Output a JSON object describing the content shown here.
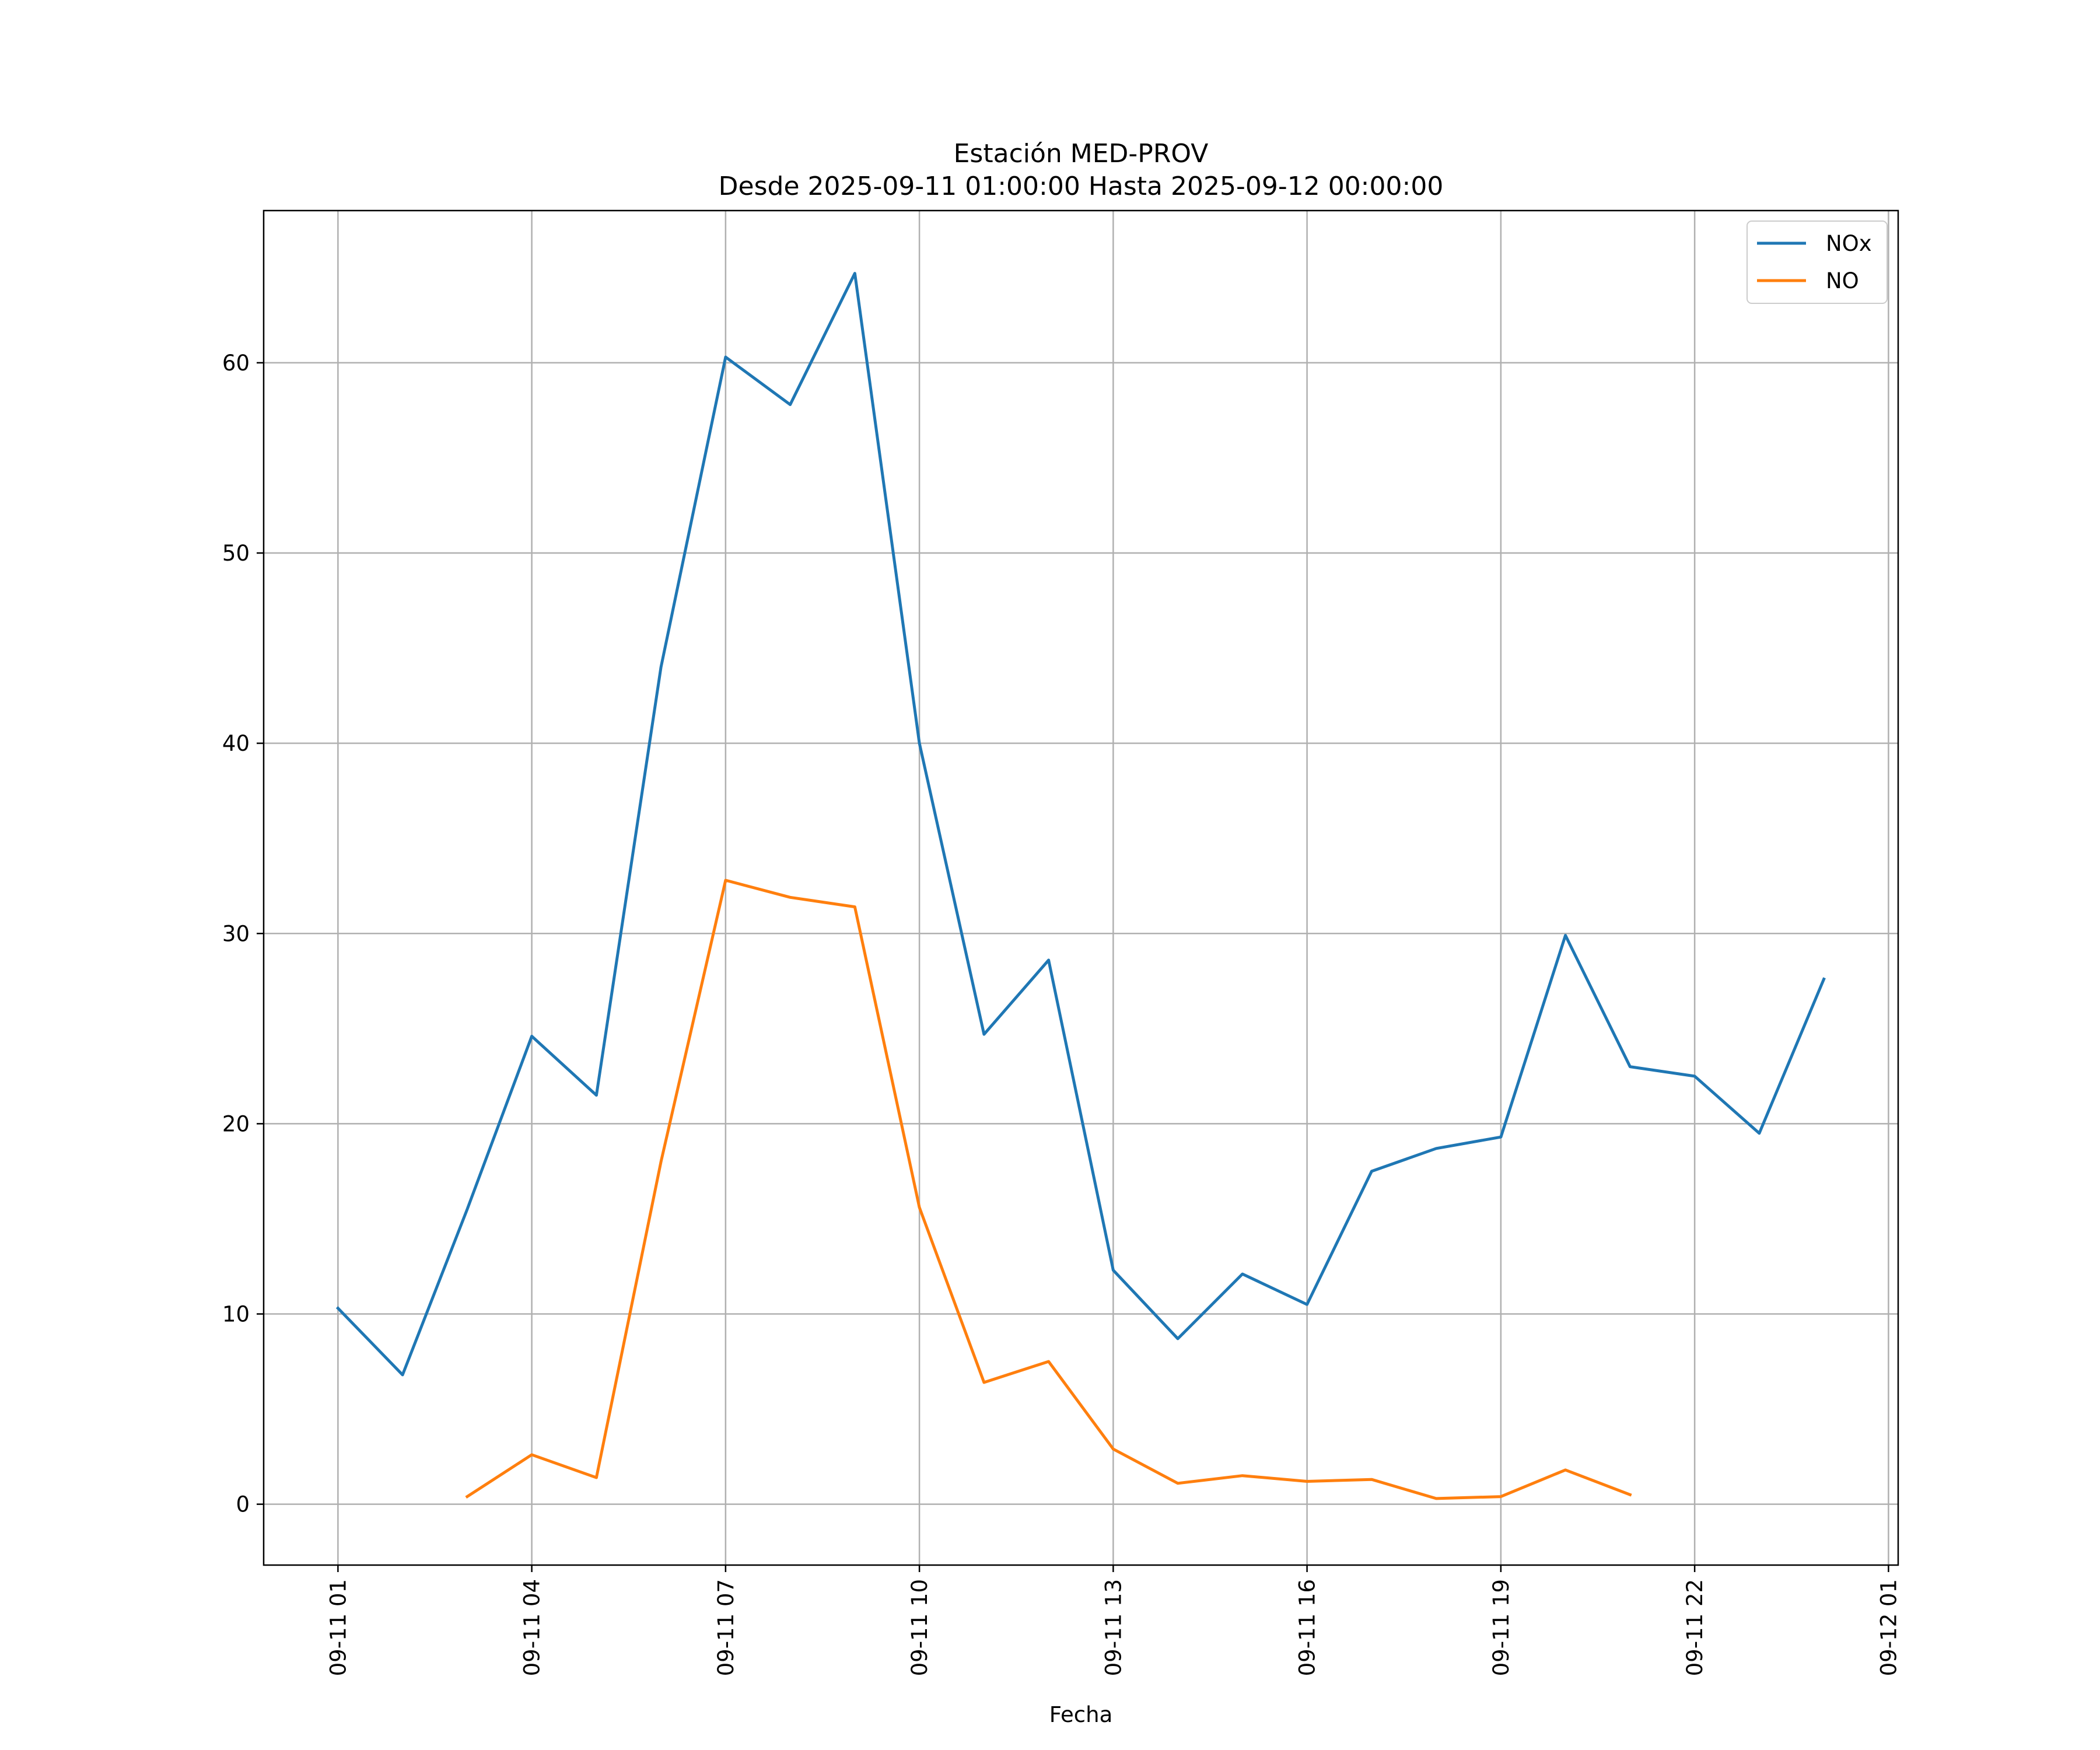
{
  "chart_data": {
    "type": "line",
    "title": "Estación MED-PROV",
    "subtitle": "Desde 2025-09-11 01:00:00 Hasta 2025-09-12 00:00:00",
    "xlabel": "Fecha",
    "ylabel": "",
    "x": [
      "2025-09-11 01:00",
      "2025-09-11 02:00",
      "2025-09-11 03:00",
      "2025-09-11 04:00",
      "2025-09-11 05:00",
      "2025-09-11 06:00",
      "2025-09-11 07:00",
      "2025-09-11 08:00",
      "2025-09-11 09:00",
      "2025-09-11 10:00",
      "2025-09-11 11:00",
      "2025-09-11 12:00",
      "2025-09-11 13:00",
      "2025-09-11 14:00",
      "2025-09-11 15:00",
      "2025-09-11 16:00",
      "2025-09-11 17:00",
      "2025-09-11 18:00",
      "2025-09-11 19:00",
      "2025-09-11 20:00",
      "2025-09-11 21:00",
      "2025-09-11 22:00",
      "2025-09-11 23:00",
      "2025-09-12 00:00"
    ],
    "series": [
      {
        "name": "NOx",
        "color": "#1f77b4",
        "values": [
          10.3,
          6.8,
          15.5,
          24.6,
          21.5,
          44.0,
          60.3,
          57.8,
          64.7,
          40.0,
          24.7,
          28.6,
          12.3,
          8.7,
          12.1,
          10.5,
          17.5,
          18.7,
          19.3,
          29.9,
          23.0,
          22.5,
          19.5,
          27.6
        ]
      },
      {
        "name": "NO",
        "color": "#ff7f0e",
        "values": [
          null,
          null,
          0.4,
          2.6,
          1.4,
          18.0,
          32.8,
          31.9,
          31.4,
          15.6,
          6.4,
          7.5,
          2.9,
          1.1,
          1.5,
          1.2,
          1.3,
          0.3,
          0.4,
          1.8,
          0.5,
          null,
          null,
          null
        ]
      }
    ],
    "x_ticks": [
      "09-11 01",
      "09-11 04",
      "09-11 07",
      "09-11 10",
      "09-11 13",
      "09-11 16",
      "09-11 19",
      "09-11 22",
      "09-12 01"
    ],
    "y_ticks": [
      0,
      10,
      20,
      30,
      40,
      50,
      60
    ],
    "xlim": [
      "2025-09-10 23:51",
      "2025-09-12 01:09"
    ],
    "ylim": [
      -3.2,
      68.0
    ],
    "grid": true,
    "legend_position": "top-right"
  },
  "colors": {
    "grid": "#b0b0b0",
    "axes": "#000000"
  }
}
